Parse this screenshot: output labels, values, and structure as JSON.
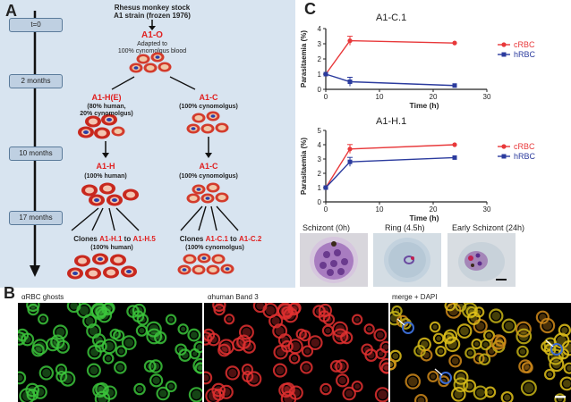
{
  "panelA": {
    "letter": "A",
    "stock_title": "Rhesus monkey stock",
    "stock_sub": "A1 strain (frozen 1976)",
    "timeline": [
      "t=0",
      "2 months",
      "10 months",
      "17 months"
    ],
    "a1o": "A1-O",
    "a1o_desc1": "Adapted to",
    "a1o_desc2": "100% cynomolgus blood",
    "a1he": "A1-H(E)",
    "a1he_desc1": "(80% human,",
    "a1he_desc2": "20% cynomolgus)",
    "a1c": "A1-C",
    "a1c_desc": "(100% cynomolgus)",
    "a1h": "A1-H",
    "a1h_desc": "(100% human)",
    "a1c2": "A1-C",
    "a1c2_desc": "(100% cynomolgus)",
    "clones_h_prefix": "Clones",
    "clones_h_a": "A1-H.1",
    "clones_h_to": "to",
    "clones_h_b": "A1-H.5",
    "clones_h_desc": "(100% human)",
    "clones_c_prefix": "Clones",
    "clones_c_a": "A1-C.1",
    "clones_c_to": "to",
    "clones_c_b": "A1-C.2",
    "clones_c_desc": "(100% cynomolgus)"
  },
  "panelC": {
    "letter": "C",
    "micro_labels": [
      "Schizont (0h)",
      "Ring (4.5h)",
      "Early Schizont (24h)"
    ]
  },
  "panelB": {
    "letter": "B",
    "labels": [
      "αRBC ghosts",
      "αhuman Band 3",
      "merge + DAPI"
    ]
  },
  "colors": {
    "red": "#e8383a",
    "blue": "#2b3b9e"
  },
  "chart_data": [
    {
      "type": "line",
      "title": "A1-C.1",
      "xlabel": "Time (h)",
      "ylabel": "Parasitaemia (%)",
      "xlim": [
        0,
        30
      ],
      "ylim": [
        0,
        4
      ],
      "xticks": [
        0,
        10,
        20,
        30
      ],
      "yticks": [
        0,
        1,
        2,
        3,
        4
      ],
      "legend_position": "right",
      "series": [
        {
          "name": "cRBC",
          "color": "#e8383a",
          "x": [
            0,
            4.5,
            24
          ],
          "y": [
            1.0,
            3.2,
            3.05
          ]
        },
        {
          "name": "hRBC",
          "color": "#2b3b9e",
          "x": [
            0,
            4.5,
            24
          ],
          "y": [
            1.0,
            0.5,
            0.25
          ]
        }
      ]
    },
    {
      "type": "line",
      "title": "A1-H.1",
      "xlabel": "Time (h)",
      "ylabel": "Parasitaemia (%)",
      "xlim": [
        0,
        30
      ],
      "ylim": [
        0,
        5
      ],
      "xticks": [
        0,
        10,
        20,
        30
      ],
      "yticks": [
        0,
        1,
        2,
        3,
        4,
        5
      ],
      "legend_position": "right",
      "series": [
        {
          "name": "cRBC",
          "color": "#e8383a",
          "x": [
            0,
            4.5,
            24
          ],
          "y": [
            1.0,
            3.7,
            4.0
          ]
        },
        {
          "name": "hRBC",
          "color": "#2b3b9e",
          "x": [
            0,
            4.5,
            24
          ],
          "y": [
            1.0,
            2.8,
            3.1
          ]
        }
      ]
    }
  ]
}
